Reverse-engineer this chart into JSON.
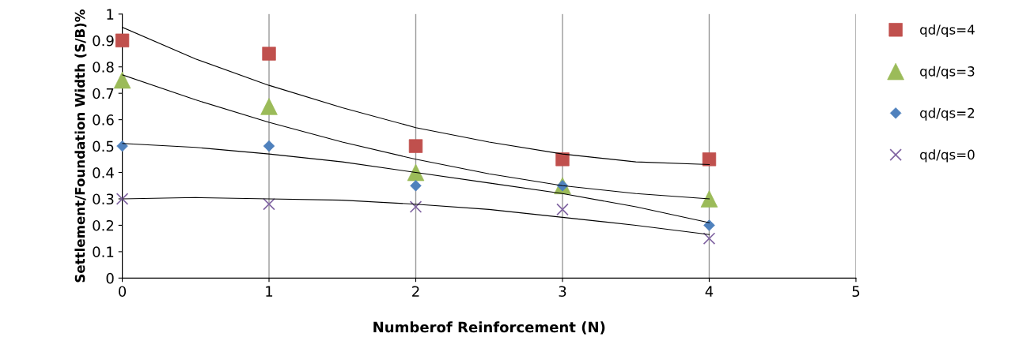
{
  "chart_data": {
    "type": "scatter",
    "xlabel": "Numberof Reinforcement (N)",
    "ylabel": "Settlement/Foundation Width (S/B)%",
    "xlim": [
      0,
      5
    ],
    "xticks": [
      0,
      1,
      2,
      3,
      4,
      5
    ],
    "ylim": [
      0,
      1
    ],
    "yticks": [
      0,
      0.1,
      0.2,
      0.3,
      0.4,
      0.5,
      0.6,
      0.7,
      0.8,
      0.9,
      1
    ],
    "grid": "x",
    "legend": "right",
    "series": [
      {
        "name": "qd/qs=4",
        "color": "#c0504d",
        "marker": "square",
        "x": [
          0,
          1,
          2,
          3,
          4
        ],
        "values": [
          0.9,
          0.85,
          0.5,
          0.45,
          0.45
        ]
      },
      {
        "name": "qd/qs=3",
        "color": "#9bbb59",
        "marker": "triangle",
        "x": [
          0,
          1,
          2,
          3,
          4
        ],
        "values": [
          0.75,
          0.65,
          0.4,
          0.35,
          0.3
        ]
      },
      {
        "name": "qd/qs=2",
        "color": "#4f81bd",
        "marker": "diamond",
        "x": [
          0,
          1,
          2,
          3,
          4
        ],
        "values": [
          0.5,
          0.5,
          0.35,
          0.35,
          0.2
        ]
      },
      {
        "name": "qd/qs=0",
        "color": "#8064a2",
        "marker": "cross",
        "x": [
          0,
          1,
          2,
          3,
          4
        ],
        "values": [
          0.3,
          0.28,
          0.27,
          0.26,
          0.15
        ]
      },
      {
        "type": "line",
        "color": "#000000",
        "x": [
          0,
          0.5,
          1,
          1.5,
          2,
          2.5,
          3,
          3.5,
          4
        ],
        "values": [
          0.95,
          0.83,
          0.73,
          0.645,
          0.57,
          0.515,
          0.47,
          0.44,
          0.43
        ]
      },
      {
        "type": "line",
        "color": "#000000",
        "x": [
          0,
          0.5,
          1,
          1.5,
          2,
          2.5,
          3,
          3.5,
          4
        ],
        "values": [
          0.77,
          0.675,
          0.59,
          0.515,
          0.45,
          0.395,
          0.35,
          0.32,
          0.3
        ]
      },
      {
        "type": "line",
        "color": "#000000",
        "x": [
          0,
          0.5,
          1,
          1.5,
          2,
          2.5,
          3,
          3.5,
          4
        ],
        "values": [
          0.51,
          0.495,
          0.47,
          0.44,
          0.4,
          0.36,
          0.32,
          0.27,
          0.21
        ]
      },
      {
        "type": "line",
        "color": "#000000",
        "x": [
          0,
          0.5,
          1,
          1.5,
          2,
          2.5,
          3,
          3.5,
          4
        ],
        "values": [
          0.3,
          0.305,
          0.3,
          0.295,
          0.28,
          0.26,
          0.23,
          0.2,
          0.165
        ]
      }
    ]
  }
}
